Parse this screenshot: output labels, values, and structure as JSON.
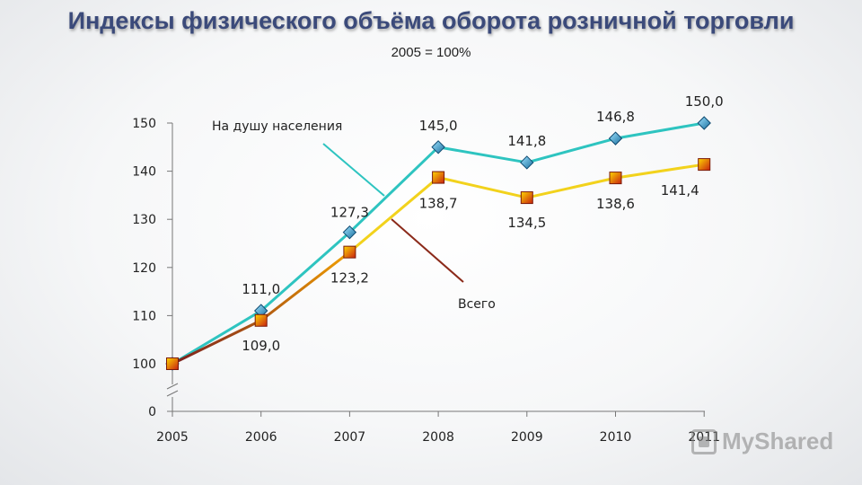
{
  "title": "Индексы физического объёма оборота розничной торговли",
  "subtitle": "2005 = 100%",
  "watermark": "MyShared",
  "chart_data": {
    "type": "line",
    "title": "Индексы физического объёма оборота розничной торговли",
    "subtitle": "2005 = 100%",
    "xlabel": "",
    "ylabel": "",
    "categories": [
      "2005",
      "2006",
      "2007",
      "2008",
      "2009",
      "2010",
      "2011"
    ],
    "ylim": [
      100,
      150
    ],
    "y_axis_break": true,
    "y_ticks": [
      "0",
      "100",
      "110",
      "120",
      "130",
      "140",
      "150"
    ],
    "grid": false,
    "series": [
      {
        "name": "На душу населения",
        "values": [
          100,
          111.0,
          127.3,
          145.0,
          141.8,
          146.8,
          150.0
        ],
        "labels": [
          "",
          "111,0",
          "127,3",
          "145,0",
          "141,8",
          "146,8",
          "150,0"
        ],
        "color": "#2ec4c0",
        "marker_color": "#1f8fbf",
        "marker": "diamond"
      },
      {
        "name": "Всего",
        "values": [
          100,
          109.0,
          123.2,
          138.7,
          134.5,
          138.6,
          141.4
        ],
        "labels": [
          "",
          "109,0",
          "123,2",
          "138,7",
          "134,5",
          "138,6",
          "141,4"
        ],
        "color": "#f2d21c",
        "marker_color": "#d4401a",
        "marker": "square"
      }
    ]
  }
}
